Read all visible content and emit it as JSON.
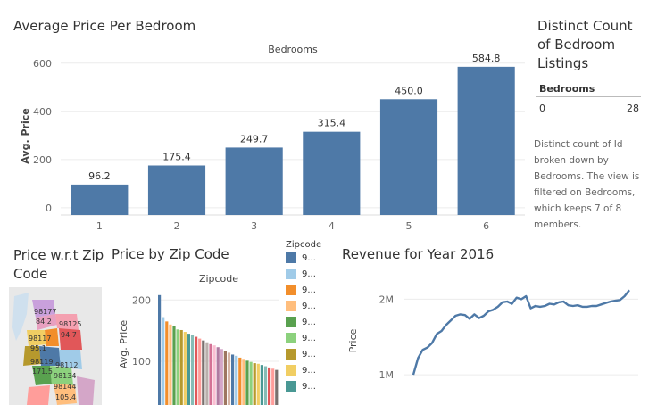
{
  "dashboard": {
    "avg_price_title": "Average Price Per Bedroom",
    "distinct_title_lines": [
      "Distinct Count",
      "of Bedroom",
      "Listings"
    ],
    "distinct_table": {
      "header": "Bedrooms",
      "row_label": "0",
      "row_value": "28"
    },
    "distinct_description_lines": [
      "Distinct count of Id",
      "broken down by",
      "Bedrooms. The view is",
      "filtered on Bedrooms,",
      "which keeps 7 of 8",
      "members."
    ],
    "price_zip_map_title_lines": [
      "Price w.r.t Zip",
      "Code"
    ],
    "price_by_zip_title": "Price by Zip Code",
    "revenue_title": "Revenue for Year 2016",
    "zip_legend_title": "Zipcode",
    "zip_legend_entries": [
      {
        "label": "9...",
        "color": "#4e79a7"
      },
      {
        "label": "9...",
        "color": "#a0cbe8"
      },
      {
        "label": "9...",
        "color": "#f28e2b"
      },
      {
        "label": "9...",
        "color": "#ffbe7d"
      },
      {
        "label": "9...",
        "color": "#59a14f"
      },
      {
        "label": "9...",
        "color": "#8cd17d"
      },
      {
        "label": "9...",
        "color": "#b6992d"
      },
      {
        "label": "9...",
        "color": "#f1ce63"
      },
      {
        "label": "9...",
        "color": "#499894"
      }
    ],
    "map_labels": [
      "98177",
      "84.2",
      "98125",
      "94.7",
      "98117",
      "95.1",
      "98119",
      "98112",
      "171.5",
      "98134",
      "98144",
      "105.4"
    ]
  },
  "chart_data": [
    {
      "id": "avg-price-per-bedroom",
      "type": "bar",
      "title": "Average Price Per Bedroom",
      "xlabel": "Bedrooms",
      "ylabel": "Avg. Price",
      "categories": [
        "1",
        "2",
        "3",
        "4",
        "5",
        "6"
      ],
      "values": [
        96.2,
        175.4,
        249.7,
        315.4,
        450.0,
        584.8
      ],
      "value_labels": [
        "96.2",
        "175.4",
        "249.7",
        "315.4",
        "450.0",
        "584.8"
      ],
      "yticks": [
        "0",
        "200",
        "400",
        "600"
      ],
      "ylim": [
        -30,
        625
      ],
      "grid": true,
      "color": "#4e79a7"
    },
    {
      "id": "price-by-zip",
      "type": "bar",
      "title": "Price by Zip Code",
      "xlabel": "Zipcode",
      "ylabel": "Avg. Price",
      "values": [
        208,
        172,
        165,
        160,
        157,
        152,
        151,
        148,
        145,
        143,
        140,
        137,
        134,
        131,
        128,
        126,
        123,
        120,
        117,
        114,
        111,
        109,
        106,
        104,
        101,
        99,
        97,
        96,
        94,
        92,
        90,
        88,
        86,
        83,
        81,
        79,
        77,
        75,
        72,
        70
      ],
      "colors": [
        "#4e79a7",
        "#a0cbe8",
        "#f28e2b",
        "#ffbe7d",
        "#59a14f",
        "#8cd17d",
        "#b6992d",
        "#f1ce63",
        "#499894",
        "#86bcb6",
        "#e15759",
        "#ff9d9a",
        "#79706e",
        "#bab0ac",
        "#d37295",
        "#fabfd2",
        "#b07aa1",
        "#d4a6c8",
        "#9d7660",
        "#d7b5a6"
      ],
      "yticks": [
        "100",
        "200"
      ],
      "ylim": [
        20,
        215
      ],
      "grid": true
    },
    {
      "id": "revenue-2016",
      "type": "line",
      "title": "Revenue for Year 2016",
      "ylabel": "Price",
      "values": [
        1.0,
        1.22,
        1.33,
        1.36,
        1.42,
        1.54,
        1.58,
        1.66,
        1.72,
        1.78,
        1.8,
        1.79,
        1.74,
        1.8,
        1.75,
        1.78,
        1.84,
        1.86,
        1.9,
        1.96,
        1.97,
        1.94,
        2.02,
        2.0,
        2.04,
        1.88,
        1.91,
        1.9,
        1.91,
        1.94,
        1.93,
        1.96,
        1.97,
        1.92,
        1.91,
        1.92,
        1.9,
        1.9,
        1.91,
        1.91,
        1.93,
        1.95,
        1.97,
        1.98,
        1.99,
        2.04,
        2.12
      ],
      "yticks": [
        "1M",
        "2M"
      ],
      "ylim": [
        0.6,
        2.3
      ],
      "grid": true,
      "color": "#4e79a7"
    }
  ]
}
